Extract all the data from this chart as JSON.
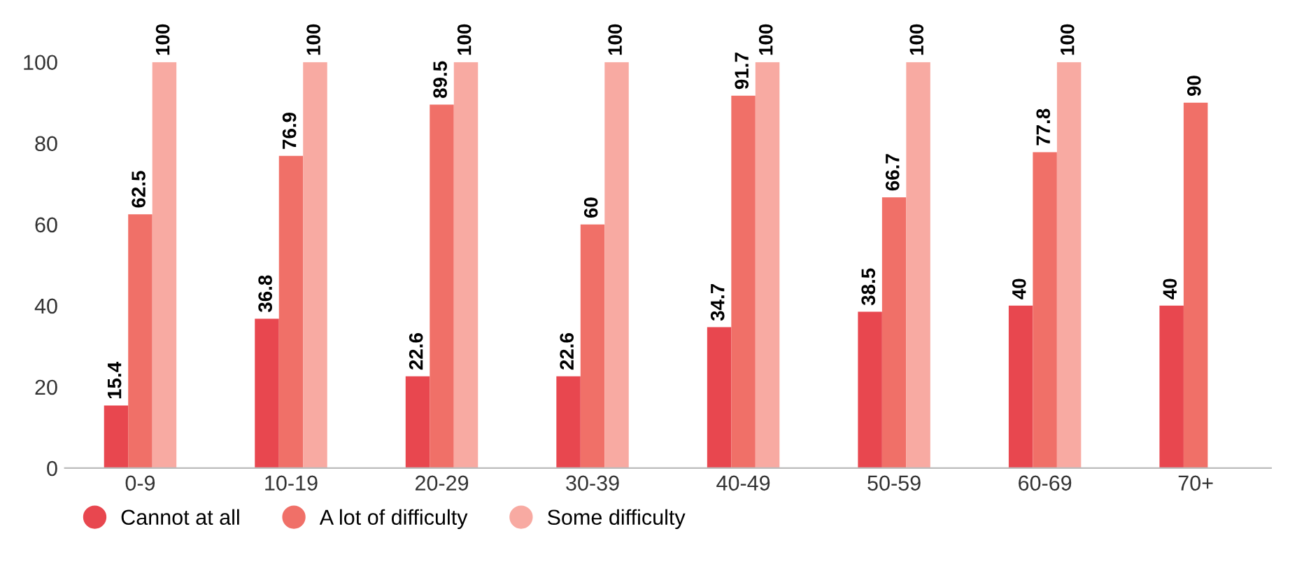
{
  "chart_data": {
    "type": "bar",
    "categories": [
      "0-9",
      "10-19",
      "20-29",
      "30-39",
      "40-49",
      "50-59",
      "60-69",
      "70+"
    ],
    "series": [
      {
        "name": "Cannot at all",
        "color": "#e8474f",
        "values": [
          15.4,
          36.8,
          22.6,
          22.6,
          34.7,
          38.5,
          40,
          40
        ]
      },
      {
        "name": "A lot of difficulty",
        "color": "#f07068",
        "values": [
          62.5,
          76.9,
          89.5,
          60,
          91.7,
          66.7,
          77.8,
          90
        ]
      },
      {
        "name": "Some difficulty",
        "color": "#f8aaa2",
        "values": [
          100,
          100,
          100,
          100,
          100,
          100,
          100,
          null
        ]
      }
    ],
    "ylim": [
      0,
      100
    ],
    "yticks": [
      0,
      20,
      40,
      60,
      80,
      100
    ],
    "data_labels": true,
    "legend": "bottom left",
    "grid": false
  }
}
